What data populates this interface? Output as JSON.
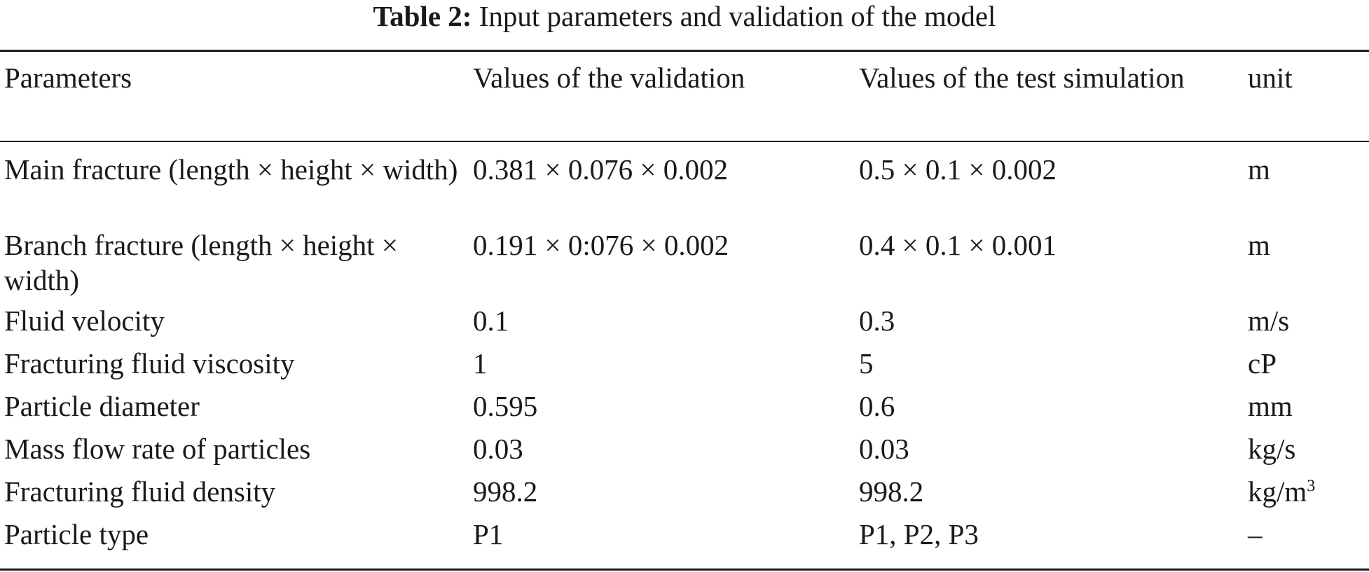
{
  "caption": {
    "label": "Table 2:",
    "text": "Input parameters and validation of the model"
  },
  "table": {
    "columns": [
      "Parameters",
      "Values of the validation",
      "Values of the test simulation",
      "unit"
    ],
    "rows": [
      {
        "parameter": "Main fracture (length × height × width)",
        "validation": "0.381 × 0.076 × 0.002",
        "test": "0.5 × 0.1 × 0.002",
        "unit": "m"
      },
      {
        "parameter": "Branch fracture (length × height × width)",
        "validation": "0.191 × 0:076 × 0.002",
        "test": "0.4 × 0.1 × 0.001",
        "unit": "m"
      },
      {
        "parameter": "Fluid velocity",
        "validation": "0.1",
        "test": "0.3",
        "unit": "m/s"
      },
      {
        "parameter": "Fracturing fluid viscosity",
        "validation": "1",
        "test": "5",
        "unit": "cP"
      },
      {
        "parameter": "Particle diameter",
        "validation": "0.595",
        "test": "0.6",
        "unit": "mm"
      },
      {
        "parameter": "Mass flow rate of particles",
        "validation": "0.03",
        "test": "0.03",
        "unit": "kg/s"
      },
      {
        "parameter": "Fracturing fluid density",
        "validation": "998.2",
        "test": "998.2",
        "unit_base": "kg/m",
        "unit_sup": "3"
      },
      {
        "parameter": "Particle type",
        "validation": "P1",
        "test": "P1, P2, P3",
        "unit": "–"
      }
    ]
  }
}
